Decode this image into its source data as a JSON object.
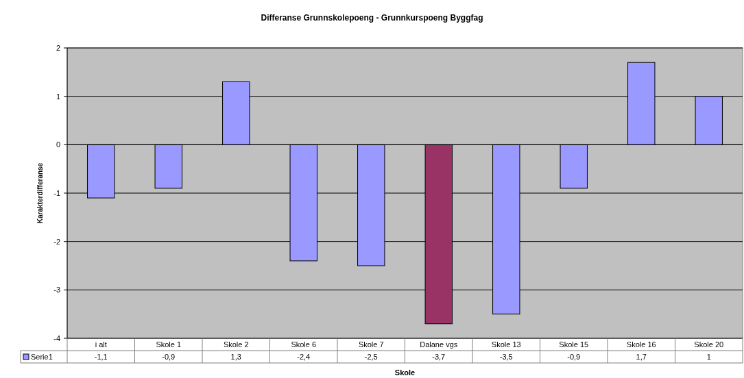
{
  "chart_data": {
    "type": "bar",
    "title": "Differanse Grunnskolepoeng - Grunnkurspoeng Byggfag",
    "xlabel": "Skole",
    "ylabel": "Karakterdifferanse",
    "categories": [
      "i alt",
      "Skole 1",
      "Skole 2",
      "Skole 6",
      "Skole 7",
      "Dalane vgs",
      "Skole 13",
      "Skole 15",
      "Skole 16",
      "Skole 20"
    ],
    "series": [
      {
        "name": "Serie1",
        "color": "#9999ff",
        "colors": [
          "#9999ff",
          "#9999ff",
          "#9999ff",
          "#9999ff",
          "#9999ff",
          "#993366",
          "#9999ff",
          "#9999ff",
          "#9999ff",
          "#9999ff"
        ],
        "values": [
          -1.1,
          -0.9,
          1.3,
          -2.4,
          -2.5,
          -3.7,
          -3.5,
          -0.9,
          1.7,
          1
        ],
        "value_labels": [
          "-1,1",
          "-0,9",
          "1,3",
          "-2,4",
          "-2,5",
          "-3,7",
          "-3,5",
          "-0,9",
          "1,7",
          "1"
        ]
      }
    ],
    "ylim": [
      -4,
      2
    ],
    "yticks": [
      -4,
      -3,
      -2,
      -1,
      0,
      1,
      2
    ],
    "grid": "y",
    "legend": "bottom"
  }
}
